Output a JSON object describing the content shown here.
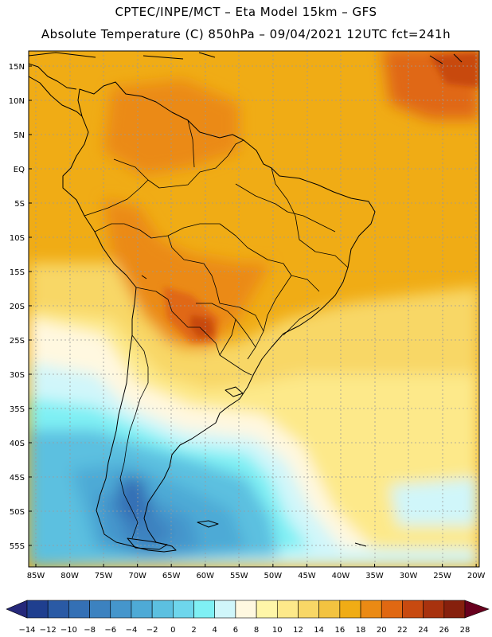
{
  "header": {
    "line1": "CPTEC/INPE/MCT –  Eta Model 15km – GFS",
    "line2": "Absolute Temperature (C) 850hPa – 09/04/2021 12UTC fct=241h"
  },
  "map": {
    "lat_labels": [
      "15N",
      "10N",
      "5N",
      "EQ",
      "5S",
      "10S",
      "15S",
      "20S",
      "25S",
      "30S",
      "35S",
      "40S",
      "45S",
      "50S",
      "55S"
    ],
    "lon_labels": [
      "85W",
      "80W",
      "75W",
      "70W",
      "65W",
      "60W",
      "55W",
      "50W",
      "45W",
      "40W",
      "35W",
      "30W",
      "25W",
      "20W"
    ]
  },
  "colorbar": {
    "labels": [
      "-14",
      "-12",
      "-10",
      "-8",
      "-6",
      "-4",
      "-2",
      "0",
      "2",
      "4",
      "6",
      "8",
      "10",
      "12",
      "14",
      "16",
      "18",
      "20",
      "22",
      "24",
      "26",
      "28"
    ],
    "colors": [
      "#1f3f8f",
      "#2a5aa5",
      "#3470b5",
      "#3c82c0",
      "#4596cc",
      "#4eaad6",
      "#5cc0e0",
      "#6ed6ec",
      "#7ff0f4",
      "#d0f6fa",
      "#fff8e0",
      "#fff6a8",
      "#fde98a",
      "#f8d766",
      "#f3c340",
      "#f0ac15",
      "#eb8a14",
      "#e06812",
      "#c84a10",
      "#a8320e",
      "#86200d"
    ],
    "end_low": "#25287a",
    "end_high": "#68001e"
  }
}
